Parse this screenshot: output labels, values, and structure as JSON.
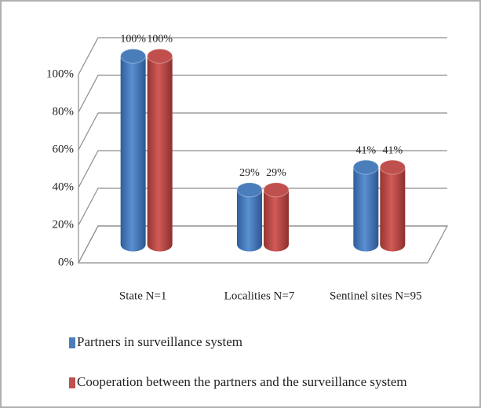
{
  "chart_data": {
    "type": "bar",
    "categories": [
      "State N=1",
      "Localities N=7",
      "Sentinel sites N=95"
    ],
    "series": [
      {
        "name": "Partners in surveillance system",
        "color": "#4a7ebb",
        "values": [
          100,
          29,
          41
        ],
        "value_labels": [
          "100%",
          "29%",
          "41%"
        ]
      },
      {
        "name": "Cooperation between the partners and the surveillance system",
        "color": "#c0504d",
        "values": [
          100,
          29,
          41
        ],
        "value_labels": [
          "100%",
          "29%",
          "41%"
        ]
      }
    ],
    "ylim": [
      0,
      100
    ],
    "yticks": [
      {
        "value": 0,
        "label": "0%"
      },
      {
        "value": 20,
        "label": "20%"
      },
      {
        "value": 40,
        "label": "40%"
      },
      {
        "value": 60,
        "label": "60%"
      },
      {
        "value": 80,
        "label": "80%"
      },
      {
        "value": 100,
        "label": "100%"
      }
    ],
    "grid": true,
    "legend": "bottom"
  }
}
